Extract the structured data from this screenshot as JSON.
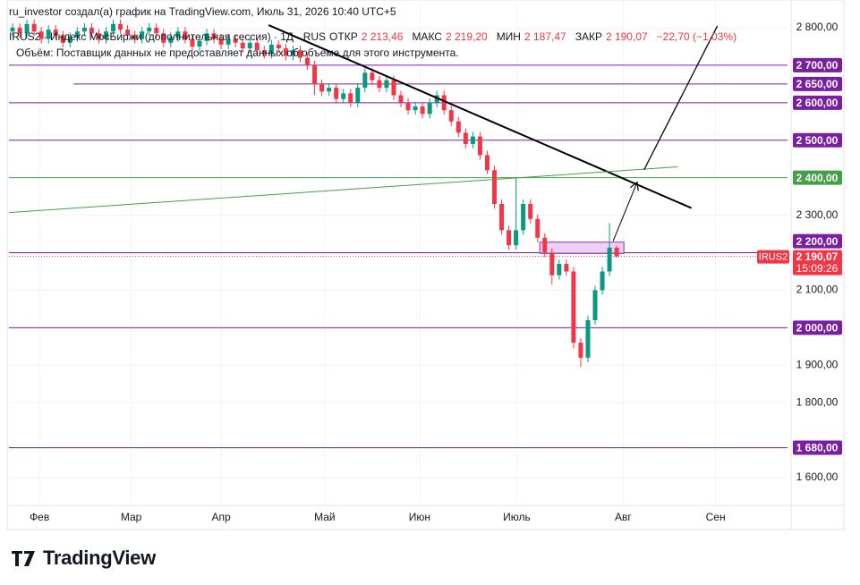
{
  "header": "ru_investor создал(а) график на TradingView.com, Июль 31, 2026 10:40 UTC+5",
  "chart_data": {
    "type": "candlestick",
    "title": "IRUS2 · Индекс МосБиржи (дополнительная сессия) · 1Д · RUS",
    "ohlc_legend": [
      {
        "label": "ОТКР",
        "value": "2 213,46"
      },
      {
        "label": "МАКС",
        "value": "2 219,20"
      },
      {
        "label": "МИН",
        "value": "2 187,47"
      },
      {
        "label": "ЗАКР",
        "value": "2 190,07"
      }
    ],
    "change": "−22,70 (−1,03%)",
    "volume_note": "Объём: Поставщик данных не предоставляет данных об объеме для этого инструмента.",
    "open": [
      2790,
      2800,
      2785,
      2810,
      2790,
      2770,
      2795,
      2780,
      2760,
      2775,
      2790,
      2800,
      2785,
      2770,
      2790,
      2810,
      2795,
      2780,
      2770,
      2790,
      2800,
      2785,
      2760,
      2775,
      2790,
      2770,
      2750,
      2765,
      2785,
      2770,
      2755,
      2770,
      2760,
      2745,
      2760,
      2740,
      2730,
      2755,
      2745,
      2725,
      2740,
      2720,
      2700,
      2650,
      2630,
      2640,
      2610,
      2625,
      2600,
      2640,
      2680,
      2660,
      2640,
      2660,
      2620,
      2600,
      2580,
      2590,
      2570,
      2600,
      2620,
      2580,
      2550,
      2520,
      2490,
      2510,
      2460,
      2420,
      2330,
      2260,
      2220,
      2260,
      2330,
      2290,
      2240,
      2200,
      2140,
      2170,
      2150,
      1960,
      1920,
      2020,
      2100,
      2150,
      2213.46
    ],
    "high": [
      2812,
      2812,
      2822,
      2822,
      2802,
      2807,
      2807,
      2792,
      2787,
      2802,
      2812,
      2812,
      2797,
      2802,
      2822,
      2822,
      2807,
      2792,
      2802,
      2812,
      2812,
      2797,
      2787,
      2802,
      2802,
      2782,
      2777,
      2797,
      2797,
      2782,
      2782,
      2782,
      2772,
      2772,
      2772,
      2752,
      2767,
      2767,
      2757,
      2752,
      2752,
      2732,
      2712,
      2662,
      2652,
      2652,
      2637,
      2637,
      2652,
      2692,
      2692,
      2672,
      2672,
      2672,
      2632,
      2612,
      2602,
      2602,
      2612,
      2632,
      2632,
      2592,
      2562,
      2532,
      2522,
      2522,
      2472,
      2432,
      2342,
      2272,
      2400,
      2342,
      2342,
      2302,
      2252,
      2212,
      2182,
      2182,
      2162,
      1972,
      2032,
      2112,
      2162,
      2279,
      2219.2
    ],
    "low": [
      2778,
      2773,
      2773,
      2778,
      2758,
      2758,
      2768,
      2748,
      2748,
      2763,
      2778,
      2773,
      2758,
      2758,
      2778,
      2783,
      2768,
      2758,
      2758,
      2778,
      2773,
      2748,
      2748,
      2763,
      2758,
      2738,
      2738,
      2753,
      2758,
      2743,
      2743,
      2748,
      2733,
      2733,
      2728,
      2718,
      2718,
      2733,
      2713,
      2713,
      2708,
      2688,
      2620,
      2618,
      2618,
      2598,
      2598,
      2588,
      2588,
      2628,
      2648,
      2628,
      2628,
      2608,
      2588,
      2568,
      2568,
      2558,
      2558,
      2588,
      2568,
      2538,
      2508,
      2478,
      2478,
      2448,
      2410,
      2318,
      2248,
      2208,
      2208,
      2248,
      2278,
      2228,
      2188,
      2115,
      2128,
      2138,
      1945,
      1895,
      1908,
      2008,
      2088,
      2138,
      2187.47
    ],
    "close": [
      2800,
      2785,
      2810,
      2790,
      2770,
      2795,
      2780,
      2760,
      2775,
      2790,
      2800,
      2785,
      2770,
      2790,
      2810,
      2795,
      2780,
      2770,
      2790,
      2800,
      2785,
      2760,
      2775,
      2790,
      2770,
      2750,
      2765,
      2785,
      2770,
      2755,
      2770,
      2760,
      2745,
      2760,
      2740,
      2730,
      2755,
      2745,
      2725,
      2740,
      2720,
      2700,
      2650,
      2630,
      2640,
      2610,
      2625,
      2600,
      2640,
      2680,
      2660,
      2640,
      2660,
      2620,
      2600,
      2580,
      2590,
      2570,
      2600,
      2620,
      2580,
      2550,
      2520,
      2490,
      2510,
      2460,
      2420,
      2330,
      2260,
      2220,
      2260,
      2330,
      2290,
      2240,
      2200,
      2140,
      2170,
      2150,
      1960,
      1920,
      2020,
      2100,
      2150,
      2213.46,
      2190.07
    ],
    "up_color": "#089981",
    "down_color": "#f23645",
    "xlim": [
      -0.5,
      107.75
    ],
    "xticks": [
      {
        "value": 3.75,
        "label": "Фев"
      },
      {
        "value": 16.5,
        "label": "Мар"
      },
      {
        "value": 29,
        "label": "Апр"
      },
      {
        "value": 43.4,
        "label": "Май"
      },
      {
        "value": 56.6,
        "label": "Июн"
      },
      {
        "value": 70.1,
        "label": "Июль"
      },
      {
        "value": 84.9,
        "label": "Авг"
      },
      {
        "value": 97.75,
        "label": "Сен"
      }
    ],
    "ylim": [
      1526,
      2874
    ],
    "yticks": [
      {
        "value": 2800,
        "label": "2 800,00"
      },
      {
        "value": 2300,
        "label": "2 300,00"
      },
      {
        "value": 2100,
        "label": "2 100,00"
      },
      {
        "value": 1900,
        "label": "1 900,00"
      },
      {
        "value": 1800,
        "label": "1 800,00"
      },
      {
        "value": 1600,
        "label": "1 600,00"
      }
    ],
    "grid": true,
    "levels": [
      {
        "value": 2700,
        "label": "2 700,00",
        "color": "#7b1fa2"
      },
      {
        "value": 2650,
        "label": "2 650,00",
        "color": "#7b1fa2",
        "start": 8.5
      },
      {
        "value": 2600,
        "label": "2 600,00",
        "color": "#7b1fa2"
      },
      {
        "value": 2500,
        "label": "2 500,00",
        "color": "#7b1fa2"
      },
      {
        "value": 2400,
        "label": "2 400,00",
        "color": "#43a047"
      },
      {
        "value": 2200,
        "label": "2 200,00",
        "color": "#7b1fa2"
      },
      {
        "value": 2000,
        "label": "2 000,00",
        "color": "#7b1fa2"
      },
      {
        "value": 1680,
        "label": "1 680,00",
        "color": "#7b1fa2"
      }
    ],
    "trendlines": [
      {
        "x": [
          35.6,
          94.4
        ],
        "y": [
          2807,
          2319
        ],
        "color": "#000000",
        "width": 2
      },
      {
        "x": [
          -0.5,
          92.5
        ],
        "y": [
          2307,
          2429
        ],
        "color": "#43a047",
        "width": 1
      },
      {
        "x": [
          83.5,
          86.8
        ],
        "y": [
          2231,
          2386
        ],
        "color": "#000000",
        "width": 1,
        "arrow": true
      },
      {
        "x": [
          87.8,
          98
        ],
        "y": [
          2421,
          2805
        ],
        "color": "#000000",
        "width": 1.3
      }
    ],
    "rectangle": {
      "x": [
        73.3,
        85
      ],
      "y": [
        2198,
        2228
      ],
      "color": "#e9c6f0",
      "border": "#9c27b0"
    },
    "last_price": {
      "symbol": "IRUS2",
      "value": 2190.07,
      "label": "2 190,07",
      "countdown": "15:09:26",
      "color": "#f23645"
    }
  },
  "footer": {
    "logo": "TradingView"
  }
}
